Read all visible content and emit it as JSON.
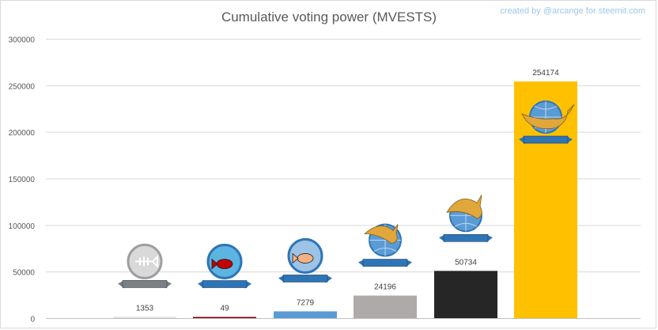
{
  "chart_data": {
    "type": "bar",
    "title": "Cumulative voting power (MVESTS)",
    "credit": "created by @arcange for steemit.com",
    "categories": [
      "Plankton",
      "Red fish",
      "Minnow",
      "Dolphin",
      "Orca",
      "Whale"
    ],
    "values": [
      1353,
      49,
      7279,
      24196,
      50734,
      254174
    ],
    "data_labels": [
      "1353",
      "49",
      "7279",
      "24196",
      "50734",
      "254174"
    ],
    "colors": [
      "#e0e0e0",
      "#7f0000",
      "#5b9bd5",
      "#aeaaaa",
      "#262626",
      "#ffc000"
    ],
    "icons": [
      "plankton-icon",
      "redfish-icon",
      "minnow-icon",
      "dolphin-icon",
      "orca-icon",
      "whale-icon"
    ],
    "ylim": [
      0,
      300000
    ],
    "yticks": [
      "0",
      "50000",
      "100000",
      "150000",
      "200000",
      "250000",
      "300000"
    ],
    "grid": true,
    "xlabel": "",
    "ylabel": ""
  }
}
